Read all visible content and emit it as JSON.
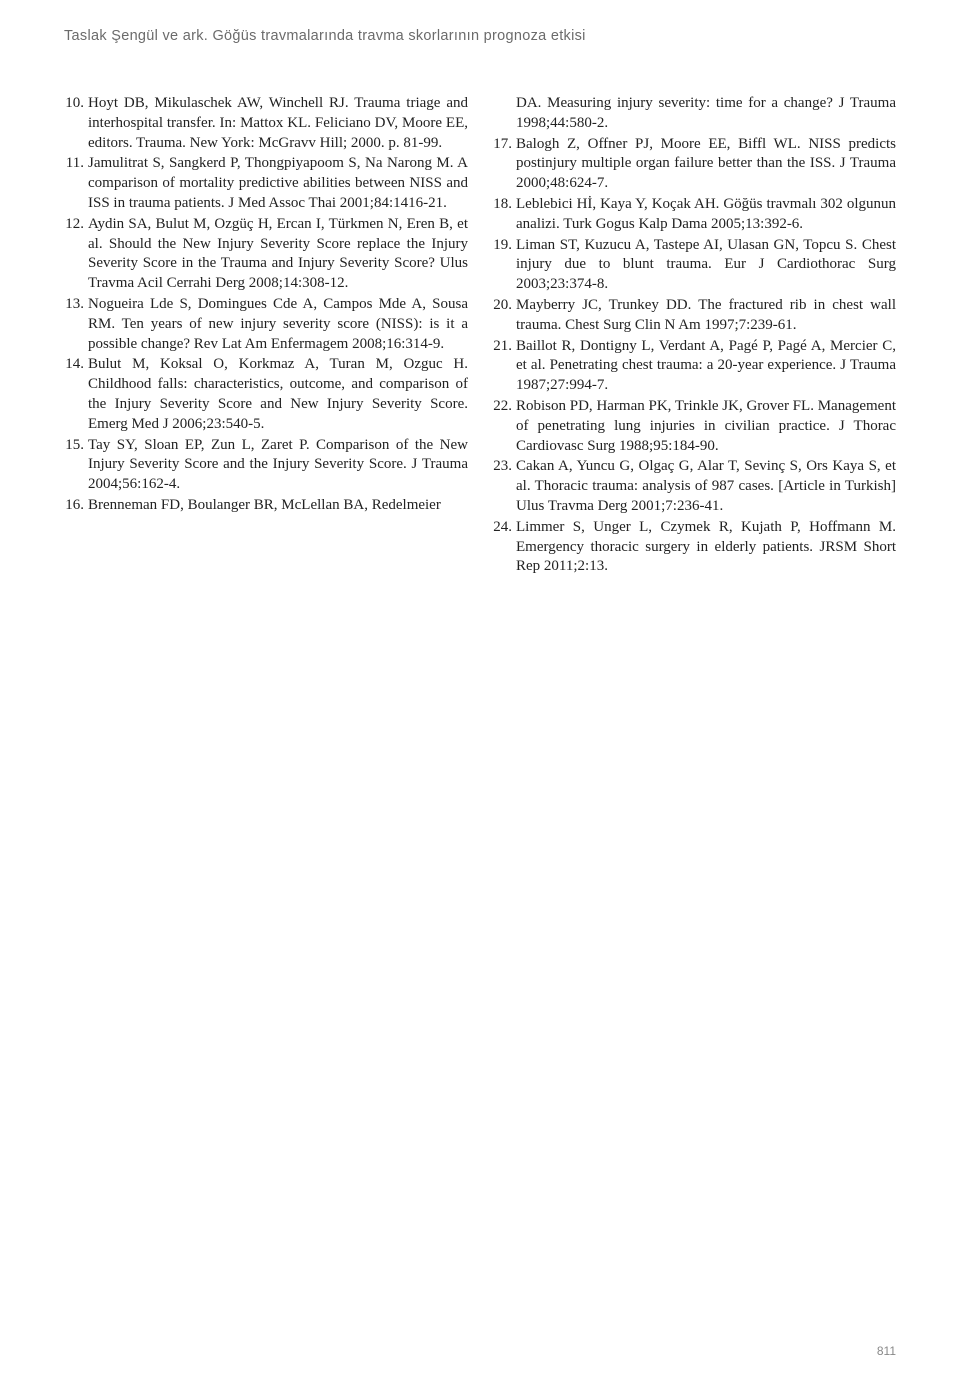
{
  "header": {
    "text": "Taslak Şengül ve ark. Göğüs travmalarında travma skorlarının prognoza etkisi"
  },
  "references": {
    "left": [
      {
        "num": "10.",
        "text": "Hoyt DB, Mikulaschek AW, Winchell RJ. Trauma triage and interhospital transfer. In: Mattox KL. Feliciano DV, Moore EE, editors. Trauma. New York: McGravv Hill; 2000. p. 81-99."
      },
      {
        "num": "11.",
        "text": "Jamulitrat S, Sangkerd P, Thongpiyapoom S, Na Narong M. A comparison of mortality predictive abilities between NISS and ISS in trauma patients. J Med Assoc Thai 2001;84:1416-21."
      },
      {
        "num": "12.",
        "text": "Aydin SA, Bulut M, Ozgüç H, Ercan I, Türkmen N, Eren B, et al. Should the New Injury Severity Score replace the Injury Severity Score in the Trauma and Injury Severity Score? Ulus Travma Acil Cerrahi Derg 2008;14:308-12."
      },
      {
        "num": "13.",
        "text": "Nogueira Lde S, Domingues Cde A, Campos Mde A, Sousa RM. Ten years of new injury severity score (NISS): is it a possible change? Rev Lat Am Enfermagem 2008;16:314-9."
      },
      {
        "num": "14.",
        "text": "Bulut M, Koksal O, Korkmaz A, Turan M, Ozguc H. Childhood falls: characteristics, outcome, and comparison of the Injury Severity Score and New Injury Severity Score. Emerg Med J 2006;23:540-5."
      },
      {
        "num": "15.",
        "text": "Tay SY, Sloan EP, Zun L, Zaret P. Comparison of the New Injury Severity Score and the Injury Severity Score. J Trauma 2004;56:162-4."
      },
      {
        "num": "16.",
        "text": "Brenneman FD, Boulanger BR, McLellan BA, Redelmeier"
      }
    ],
    "right": [
      {
        "num": "",
        "text": "DA. Measuring injury severity: time for a change? J Trauma 1998;44:580-2."
      },
      {
        "num": "17.",
        "text": "Balogh Z, Offner PJ, Moore EE, Biffl WL. NISS predicts postinjury multiple organ failure better than the ISS. J Trauma 2000;48:624-7."
      },
      {
        "num": "18.",
        "text": "Leblebici Hİ, Kaya Y, Koçak AH. Göğüs travmalı 302 olgunun analizi. Turk Gogus Kalp Dama 2005;13:392-6."
      },
      {
        "num": "19.",
        "text": "Liman ST, Kuzucu A, Tastepe AI, Ulasan GN, Topcu S. Chest injury due to blunt trauma. Eur J Cardiothorac Surg 2003;23:374-8."
      },
      {
        "num": "20.",
        "text": "Mayberry JC, Trunkey DD. The fractured rib in chest wall trauma. Chest Surg Clin N Am 1997;7:239-61."
      },
      {
        "num": "21.",
        "text": "Baillot R, Dontigny L, Verdant A, Pagé P, Pagé A, Mercier C, et al. Penetrating chest trauma: a 20-year experience. J Trauma 1987;27:994-7."
      },
      {
        "num": "22.",
        "text": "Robison PD, Harman PK, Trinkle JK, Grover FL. Management of penetrating lung injuries in civilian practice. J Thorac Cardiovasc Surg 1988;95:184-90."
      },
      {
        "num": "23.",
        "text": "Cakan A, Yuncu G, Olgaç G, Alar T, Sevinç S, Ors Kaya S, et al. Thoracic trauma: analysis of 987 cases. [Article in Turkish] Ulus Travma Derg 2001;7:236-41."
      },
      {
        "num": "24.",
        "text": "Limmer S, Unger L, Czymek R, Kujath P, Hoffmann M. Emergency thoracic surgery in elderly patients. JRSM Short Rep 2011;2:13."
      }
    ]
  },
  "pageNumber": "811"
}
